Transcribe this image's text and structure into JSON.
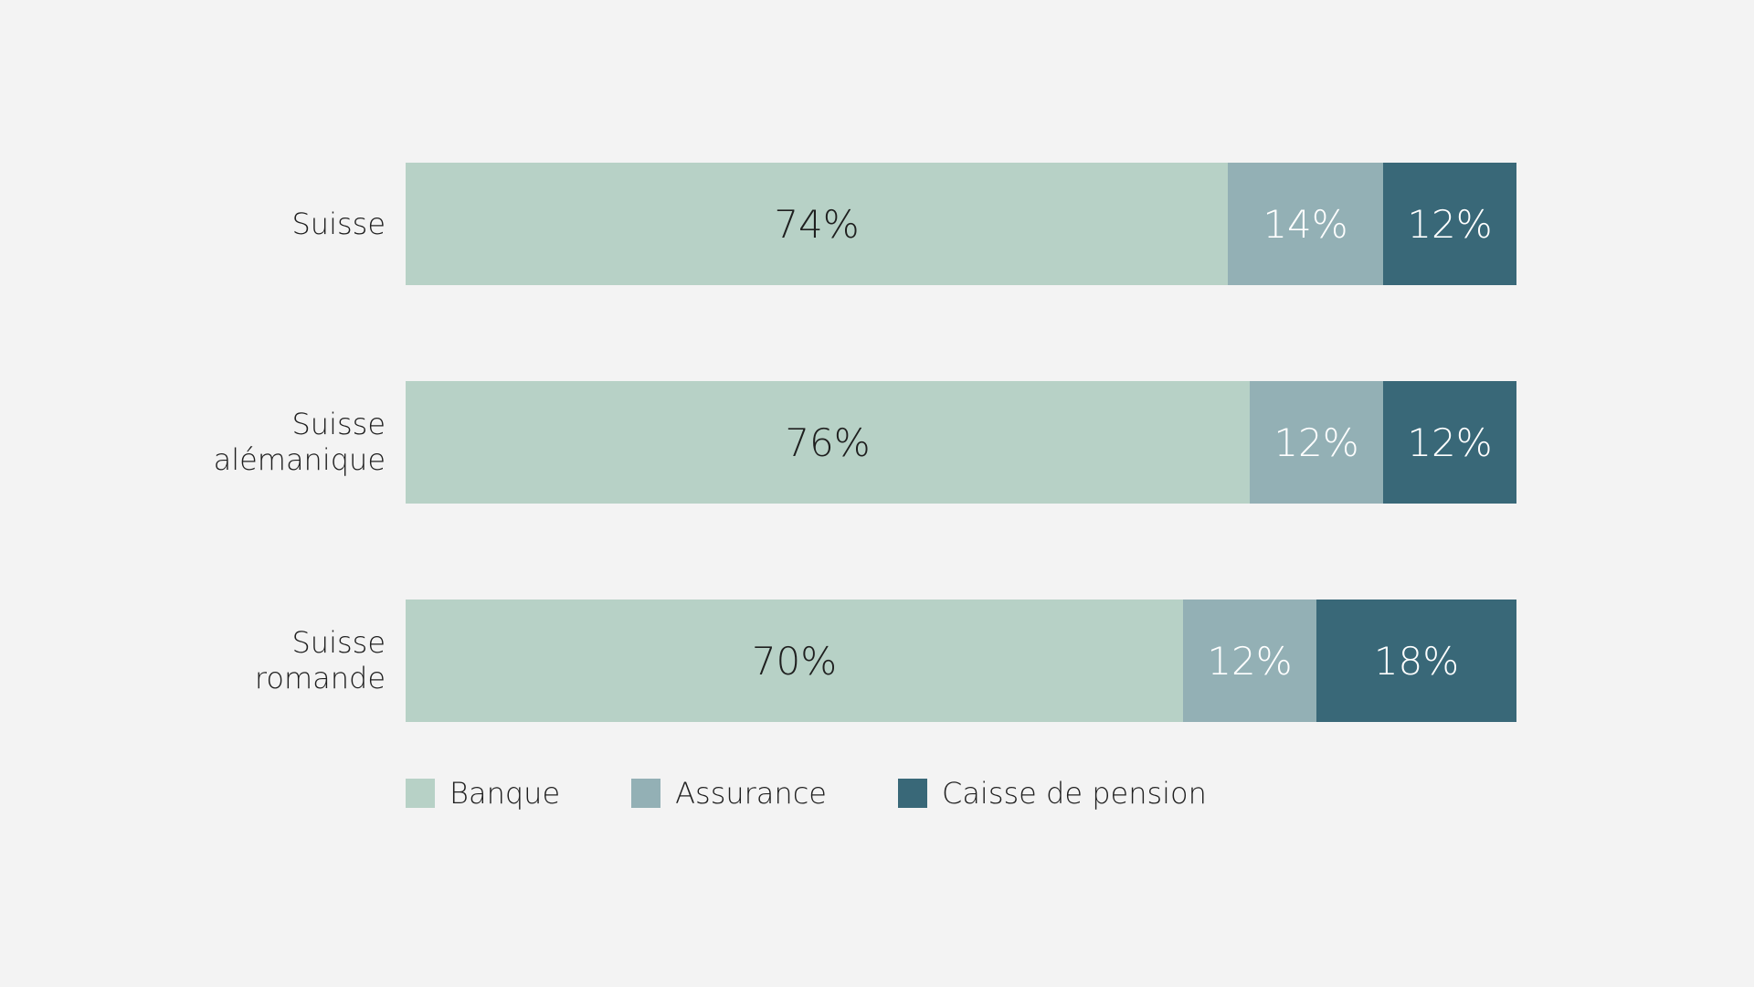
{
  "chart_data": {
    "type": "bar",
    "orientation": "horizontal",
    "stacked": true,
    "categories": [
      [
        "Suisse"
      ],
      [
        "Suisse",
        "alémanique"
      ],
      [
        "Suisse",
        "romande"
      ]
    ],
    "series": [
      {
        "name": "Banque",
        "values": [
          74,
          76,
          70
        ],
        "labels": [
          "74%",
          "76%",
          "70%"
        ],
        "color": "#b7d1c6",
        "text_color": "#1f1f1f"
      },
      {
        "name": "Assurance",
        "values": [
          14,
          12,
          12
        ],
        "labels": [
          "14%",
          "12%",
          "12%"
        ],
        "color": "#93b0b5",
        "text_color": "#ffffff"
      },
      {
        "name": "Caisse de pension",
        "values": [
          12,
          12,
          18
        ],
        "labels": [
          "12%",
          "12%",
          "18%"
        ],
        "color": "#396878",
        "text_color": "#ffffff"
      }
    ],
    "xlim": [
      0,
      100
    ],
    "grid": false,
    "legend_position": "bottom-left",
    "title": "",
    "xlabel": "",
    "ylabel": ""
  }
}
